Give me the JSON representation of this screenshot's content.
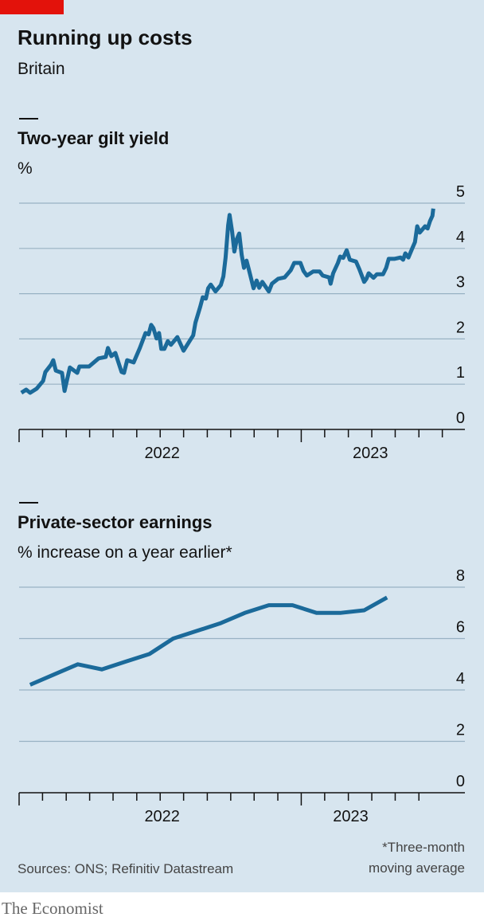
{
  "header": {
    "title": "Running up costs",
    "subtitle": "Britain"
  },
  "chart_data": [
    {
      "type": "line",
      "title": "Two-year gilt yield",
      "subtitle": "%",
      "color": "#1b6a9a",
      "grid": true,
      "x": [
        2022.008,
        2022.025,
        2022.039,
        2022.062,
        2022.085,
        2022.093,
        2022.113,
        2022.121,
        2022.13,
        2022.152,
        2022.161,
        2022.169,
        2022.18,
        2022.206,
        2022.214,
        2022.248,
        2022.282,
        2022.307,
        2022.315,
        2022.327,
        2022.341,
        2022.363,
        2022.372,
        2022.383,
        2022.406,
        2022.428,
        2022.448,
        2022.459,
        2022.468,
        2022.476,
        2022.487,
        2022.496,
        2022.504,
        2022.515,
        2022.527,
        2022.538,
        2022.561,
        2022.583,
        2022.606,
        2022.617,
        2022.625,
        2022.642,
        2022.651,
        2022.662,
        2022.67,
        2022.679,
        2022.696,
        2022.715,
        2022.724,
        2022.732,
        2022.741,
        2022.746,
        2022.755,
        2022.763,
        2022.772,
        2022.78,
        2022.789,
        2022.797,
        2022.806,
        2022.814,
        2022.831,
        2022.842,
        2022.851,
        2022.862,
        2022.885,
        2022.896,
        2022.918,
        2022.941,
        2022.963,
        2022.975,
        2022.997,
        2023.008,
        2023.02,
        2023.042,
        2023.065,
        2023.076,
        2023.099,
        2023.104,
        2023.113,
        2023.13,
        2023.138,
        2023.149,
        2023.161,
        2023.172,
        2023.194,
        2023.206,
        2023.223,
        2023.231,
        2023.239,
        2023.256,
        2023.268,
        2023.29,
        2023.301,
        2023.31,
        2023.33,
        2023.352,
        2023.361,
        2023.369,
        2023.38,
        2023.392,
        2023.403,
        2023.411,
        2023.42,
        2023.439,
        2023.448,
        2023.456,
        2023.465,
        2023.468
      ],
      "values": [
        0.81,
        0.88,
        0.81,
        0.9,
        1.07,
        1.27,
        1.43,
        1.53,
        1.3,
        1.25,
        0.85,
        1.07,
        1.37,
        1.25,
        1.39,
        1.39,
        1.57,
        1.6,
        1.8,
        1.62,
        1.69,
        1.27,
        1.25,
        1.53,
        1.48,
        1.8,
        2.13,
        2.1,
        2.31,
        2.24,
        2.01,
        2.13,
        1.78,
        1.78,
        1.95,
        1.87,
        2.04,
        1.74,
        1.97,
        2.08,
        2.36,
        2.71,
        2.92,
        2.89,
        3.12,
        3.2,
        3.05,
        3.19,
        3.38,
        3.8,
        4.51,
        4.74,
        4.37,
        3.93,
        4.21,
        4.33,
        3.86,
        3.57,
        3.73,
        3.54,
        3.12,
        3.29,
        3.13,
        3.26,
        3.05,
        3.22,
        3.33,
        3.36,
        3.52,
        3.68,
        3.68,
        3.5,
        3.4,
        3.49,
        3.49,
        3.4,
        3.36,
        3.22,
        3.45,
        3.68,
        3.82,
        3.79,
        3.96,
        3.75,
        3.71,
        3.54,
        3.26,
        3.33,
        3.45,
        3.35,
        3.43,
        3.43,
        3.57,
        3.77,
        3.77,
        3.8,
        3.75,
        3.89,
        3.8,
        3.98,
        4.14,
        4.49,
        4.35,
        4.49,
        4.44,
        4.6,
        4.72,
        4.88
      ],
      "xlim": [
        2022,
        2023.58
      ],
      "ylim": [
        0,
        5
      ],
      "yticks": [
        0,
        1,
        2,
        3,
        4,
        5
      ],
      "xticks": [
        {
          "value": 2022.507,
          "label": "2022"
        },
        {
          "value": 2023.245,
          "label": "2023"
        }
      ],
      "xminorticks": [
        2022,
        2022.083,
        2022.167,
        2022.25,
        2022.333,
        2022.417,
        2022.5,
        2022.583,
        2022.667,
        2022.75,
        2022.833,
        2022.917,
        2023,
        2023.083,
        2023.167,
        2023.25,
        2023.333,
        2023.417,
        2023.5
      ]
    },
    {
      "type": "line",
      "title": "Private-sector earnings",
      "subtitle": "% increase on a year earlier*",
      "color": "#1b6a9a",
      "grid": true,
      "x": [
        2022.039,
        2022.124,
        2022.208,
        2022.293,
        2022.377,
        2022.462,
        2022.546,
        2022.631,
        2022.715,
        2022.8,
        2022.885,
        2022.969,
        2023.054,
        2023.138,
        2023.223,
        2023.304
      ],
      "values": [
        4.2,
        4.6,
        5.0,
        4.8,
        5.1,
        5.4,
        6.0,
        6.3,
        6.6,
        7.0,
        7.3,
        7.3,
        7.0,
        7.0,
        7.1,
        7.6
      ],
      "xlim": [
        2022,
        2023.58
      ],
      "ylim": [
        0,
        8
      ],
      "yticks": [
        0,
        2,
        4,
        6,
        8
      ],
      "xticks": [
        {
          "value": 2022.507,
          "label": "2022"
        },
        {
          "value": 2023.175,
          "label": "2023"
        }
      ],
      "xminorticks": [
        2022,
        2022.083,
        2022.167,
        2022.25,
        2022.333,
        2022.417,
        2022.5,
        2022.583,
        2022.667,
        2022.75,
        2022.833,
        2022.917,
        2023,
        2023.083,
        2023.167,
        2023.25,
        2023.333,
        2023.417
      ]
    }
  ],
  "footer": {
    "source": "Sources: ONS; Refinitiv Datastream",
    "footnote": [
      "*Three-month",
      "moving average"
    ],
    "brand": "The Economist"
  }
}
